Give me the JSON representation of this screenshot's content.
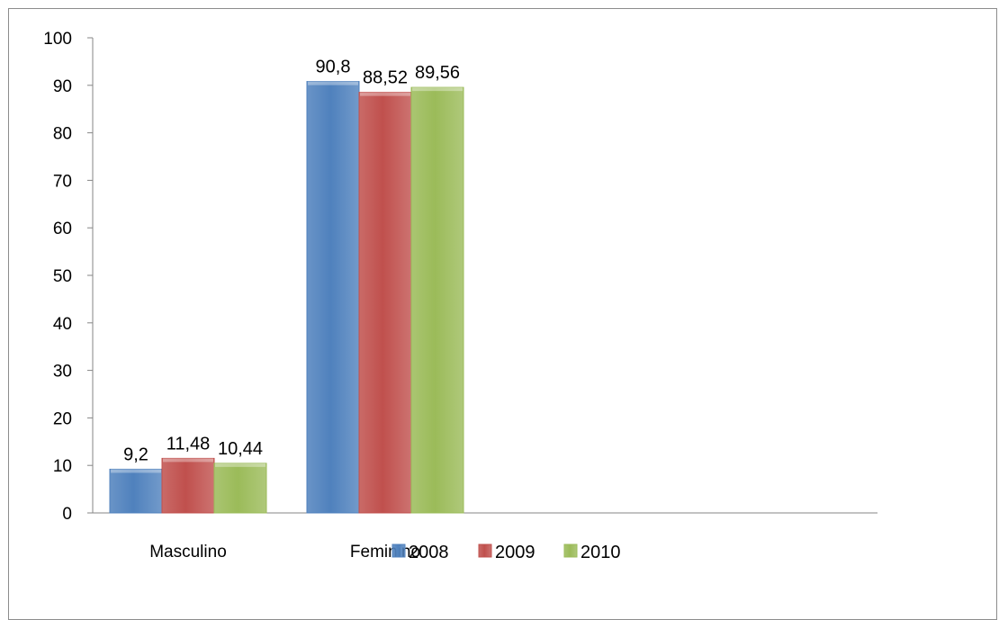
{
  "chart_data": {
    "type": "bar",
    "categories": [
      "Masculino",
      "Feminino"
    ],
    "series": [
      {
        "name": "2008",
        "values": [
          9.2,
          90.8
        ],
        "labels": [
          "9,2",
          "90,8"
        ],
        "color": "#4f81bd"
      },
      {
        "name": "2009",
        "values": [
          11.48,
          88.52
        ],
        "labels": [
          "11,48",
          "88,52"
        ],
        "color": "#c0504d"
      },
      {
        "name": "2010",
        "values": [
          10.44,
          89.56
        ],
        "labels": [
          "10,44",
          "89,56"
        ],
        "color": "#9bbb59"
      }
    ],
    "title": "",
    "xlabel": "",
    "ylabel": "",
    "ylim": [
      0,
      100
    ],
    "yticks": [
      "0",
      "10",
      "20",
      "30",
      "40",
      "50",
      "60",
      "70",
      "80",
      "90",
      "100"
    ],
    "grid": false,
    "legend_position": "bottom"
  }
}
